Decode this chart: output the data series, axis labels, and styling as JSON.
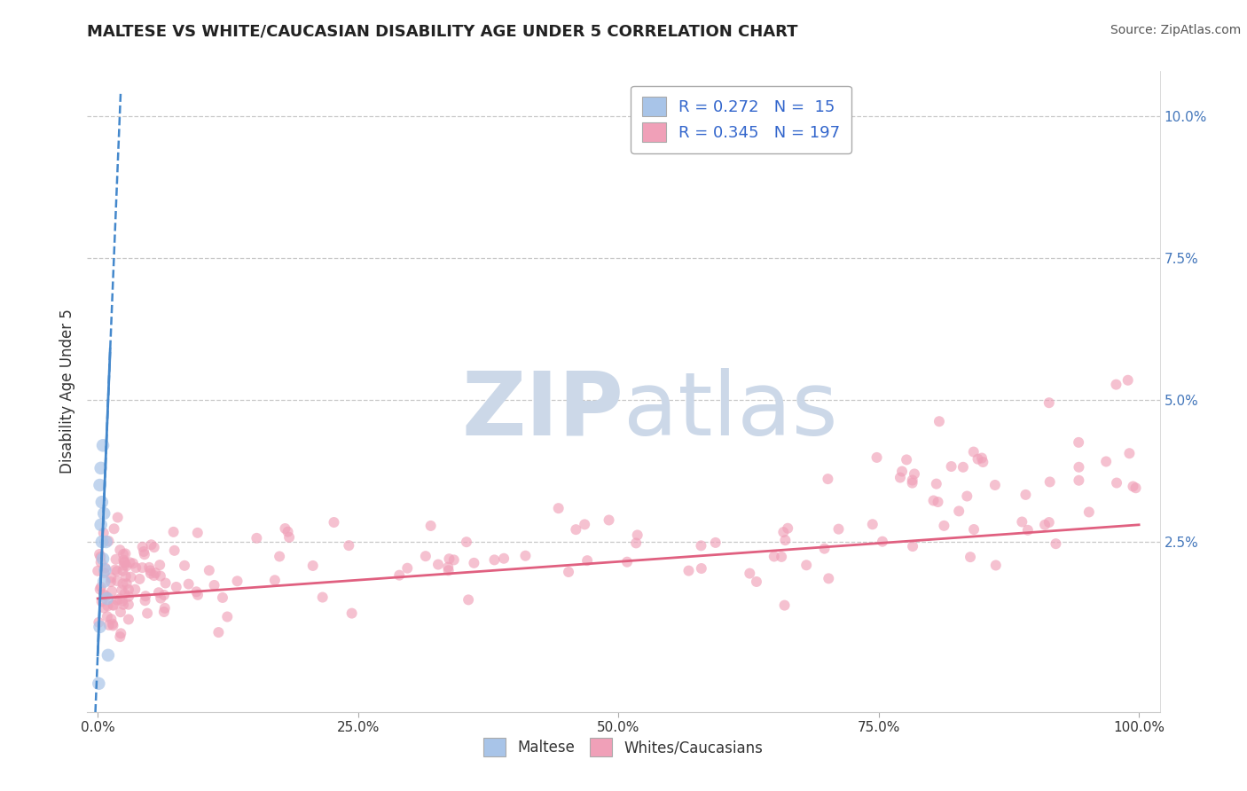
{
  "title": "MALTESE VS WHITE/CAUCASIAN DISABILITY AGE UNDER 5 CORRELATION CHART",
  "source": "Source: ZipAtlas.com",
  "ylabel": "Disability Age Under 5",
  "legend_maltese_R": "0.272",
  "legend_maltese_N": "15",
  "legend_white_R": "0.345",
  "legend_white_N": "197",
  "maltese_color": "#a8c4e8",
  "white_color": "#f0a0b8",
  "maltese_line_color": "#4488cc",
  "white_line_color": "#e06080",
  "background_color": "#ffffff",
  "grid_color": "#c8c8c8",
  "watermark_zip": "ZIP",
  "watermark_atlas": "atlas",
  "watermark_color": "#ccd8e8",
  "xlim": [
    -0.01,
    1.02
  ],
  "ylim": [
    -0.005,
    0.108
  ],
  "xtick_labels": [
    "0.0%",
    "25.0%",
    "50.0%",
    "75.0%",
    "100.0%"
  ],
  "xtick_vals": [
    0.0,
    0.25,
    0.5,
    0.75,
    1.0
  ],
  "ytick_labels": [
    "2.5%",
    "5.0%",
    "7.5%",
    "10.0%"
  ],
  "ytick_vals": [
    0.025,
    0.05,
    0.075,
    0.1
  ]
}
